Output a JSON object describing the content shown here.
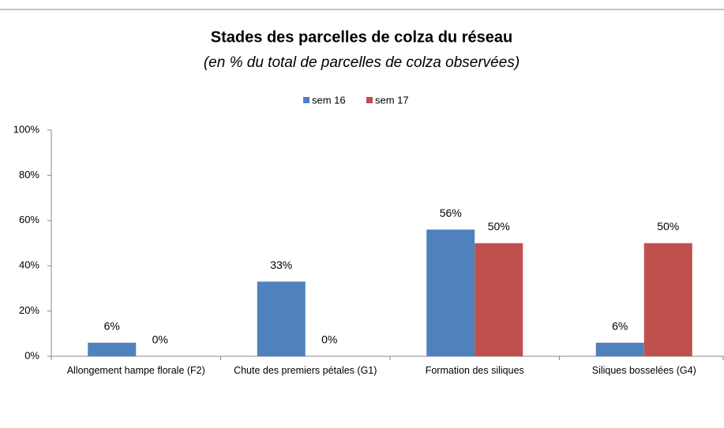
{
  "chart_data": {
    "type": "bar",
    "title": "Stades des parcelles de colza du réseau",
    "subtitle": "(en %  du total de parcelles de colza observées)",
    "categories": [
      "Allongement hampe florale (F2)",
      "Chute des premiers pétales (G1)",
      "Formation des siliques",
      "Siliques bosselées (G4)"
    ],
    "series": [
      {
        "name": "sem 16",
        "color": "#4f81bd",
        "values": [
          6,
          33,
          56,
          6
        ],
        "value_labels": [
          "6%",
          "33%",
          "56%",
          "6%"
        ]
      },
      {
        "name": "sem 17",
        "color": "#c0504d",
        "values": [
          0,
          0,
          50,
          50
        ],
        "value_labels": [
          "0%",
          "0%",
          "50%",
          "50%"
        ]
      }
    ],
    "ylim": [
      0,
      100
    ],
    "yticks": [
      {
        "value": 0,
        "label": "0%"
      },
      {
        "value": 20,
        "label": "20%"
      },
      {
        "value": 40,
        "label": "40%"
      },
      {
        "value": 60,
        "label": "60%"
      },
      {
        "value": 80,
        "label": "80%"
      },
      {
        "value": 100,
        "label": "100%"
      }
    ],
    "legend": "top"
  }
}
